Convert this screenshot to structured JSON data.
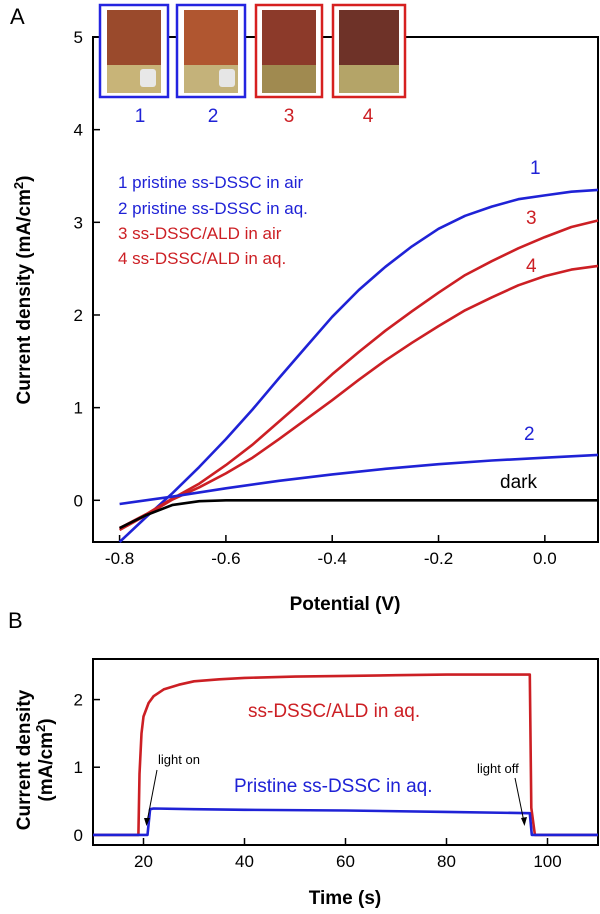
{
  "colors": {
    "blue": "#1f22d6",
    "red": "#cc1f24",
    "black": "#000000",
    "photo_border_blue": "#2424e0",
    "photo_border_red": "#d62020"
  },
  "panel_a": {
    "letter": "A",
    "photos": [
      {
        "label": "1",
        "color": "blue"
      },
      {
        "label": "2",
        "color": "blue"
      },
      {
        "label": "3",
        "color": "red"
      },
      {
        "label": "4",
        "color": "red"
      }
    ],
    "legend": [
      {
        "text": "1 pristine ss-DSSC in air",
        "color": "blue"
      },
      {
        "text": "2 pristine ss-DSSC in aq.",
        "color": "blue"
      },
      {
        "text": "3 ss-DSSC/ALD in air",
        "color": "red"
      },
      {
        "text": "4 ss-DSSC/ALD in aq.",
        "color": "red"
      }
    ],
    "curve_labels": [
      {
        "text": "1",
        "color": "blue"
      },
      {
        "text": "3",
        "color": "red"
      },
      {
        "text": "4",
        "color": "red"
      },
      {
        "text": "2",
        "color": "blue"
      },
      {
        "text": "dark",
        "color": "black"
      }
    ],
    "ylabel_main": "Current density (mA/cm",
    "ylabel_sup": "2",
    "ylabel_end": ")",
    "xlabel": "Potential (V)"
  },
  "panel_b": {
    "letter": "B",
    "ylabel_line1": "Current density",
    "ylabel_line2_main": "(mA/cm",
    "ylabel_line2_sup": "2",
    "ylabel_line2_end": ")",
    "xlabel": "Time (s)",
    "series_labels": [
      {
        "text": "ss-DSSC/ALD in aq.",
        "color": "red"
      },
      {
        "text": "Pristine ss-DSSC in aq.",
        "color": "blue"
      }
    ],
    "annotations": {
      "light_on": "light on",
      "light_off": "light off"
    }
  },
  "chart_data": [
    {
      "type": "line",
      "xlabel": "Potential (V)",
      "ylabel": "Current density (mA/cm2)",
      "xlim": [
        -0.85,
        0.1
      ],
      "ylim": [
        -0.45,
        5
      ],
      "xticks": [
        -0.8,
        -0.6,
        -0.4,
        -0.2,
        0.0
      ],
      "xtick_labels": [
        "-0.8",
        "-0.6",
        "-0.4",
        "-0.2",
        "0.0"
      ],
      "yticks": [
        0,
        1,
        2,
        3,
        4,
        5
      ],
      "ytick_labels": [
        "0",
        "1",
        "2",
        "3",
        "4",
        "5"
      ],
      "series": [
        {
          "name": "1 pristine ss-DSSC in air",
          "color": "blue",
          "x": [
            -0.8,
            -0.75,
            -0.7,
            -0.65,
            -0.6,
            -0.55,
            -0.5,
            -0.45,
            -0.4,
            -0.35,
            -0.3,
            -0.25,
            -0.2,
            -0.15,
            -0.1,
            -0.05,
            0.0,
            0.05,
            0.1
          ],
          "y": [
            -0.45,
            -0.18,
            0.08,
            0.36,
            0.66,
            0.98,
            1.32,
            1.65,
            1.98,
            2.27,
            2.52,
            2.74,
            2.93,
            3.07,
            3.17,
            3.25,
            3.29,
            3.33,
            3.35
          ]
        },
        {
          "name": "3 ss-DSSC/ALD in air",
          "color": "red",
          "x": [
            -0.8,
            -0.75,
            -0.7,
            -0.65,
            -0.6,
            -0.55,
            -0.5,
            -0.45,
            -0.4,
            -0.35,
            -0.3,
            -0.25,
            -0.2,
            -0.15,
            -0.1,
            -0.05,
            0.0,
            0.05,
            0.1
          ],
          "y": [
            -0.3,
            -0.15,
            0.02,
            0.18,
            0.38,
            0.6,
            0.85,
            1.1,
            1.36,
            1.6,
            1.83,
            2.04,
            2.24,
            2.43,
            2.58,
            2.72,
            2.84,
            2.95,
            3.02
          ]
        },
        {
          "name": "4 ss-DSSC/ALD in aq.",
          "color": "red",
          "x": [
            -0.8,
            -0.75,
            -0.7,
            -0.65,
            -0.6,
            -0.55,
            -0.5,
            -0.45,
            -0.4,
            -0.35,
            -0.3,
            -0.25,
            -0.2,
            -0.15,
            -0.1,
            -0.05,
            0.0,
            0.05,
            0.1
          ],
          "y": [
            -0.32,
            -0.16,
            0.01,
            0.14,
            0.29,
            0.46,
            0.66,
            0.87,
            1.08,
            1.3,
            1.51,
            1.7,
            1.88,
            2.05,
            2.19,
            2.32,
            2.42,
            2.49,
            2.53
          ]
        },
        {
          "name": "2 pristine ss-DSSC in aq.",
          "color": "blue",
          "x": [
            -0.8,
            -0.7,
            -0.6,
            -0.5,
            -0.4,
            -0.3,
            -0.2,
            -0.1,
            0.0,
            0.1
          ],
          "y": [
            -0.04,
            0.04,
            0.13,
            0.21,
            0.28,
            0.34,
            0.39,
            0.43,
            0.46,
            0.49
          ]
        },
        {
          "name": "dark",
          "color": "black",
          "x": [
            -0.8,
            -0.75,
            -0.7,
            -0.65,
            -0.6,
            -0.5,
            -0.4,
            -0.2,
            0.0,
            0.1
          ],
          "y": [
            -0.3,
            -0.16,
            -0.05,
            -0.01,
            0.0,
            0.0,
            0.0,
            0.0,
            0.0,
            0.0
          ]
        }
      ]
    },
    {
      "type": "line",
      "xlabel": "Time (s)",
      "ylabel": "Current density (mA/cm2)",
      "xlim": [
        10,
        110
      ],
      "ylim": [
        -0.15,
        2.6
      ],
      "xticks": [
        20,
        40,
        60,
        80,
        100
      ],
      "xtick_labels": [
        "20",
        "40",
        "60",
        "80",
        "100"
      ],
      "yticks": [
        0,
        1,
        2
      ],
      "ytick_labels": [
        "0",
        "1",
        "2"
      ],
      "series": [
        {
          "name": "ss-DSSC/ALD in aq.",
          "color": "red",
          "x": [
            10,
            19,
            19.2,
            19.6,
            20,
            21,
            22,
            24,
            27,
            30,
            35,
            40,
            50,
            60,
            70,
            80,
            90,
            96.5,
            96.8,
            97.5,
            110
          ],
          "y": [
            0,
            0,
            0.9,
            1.5,
            1.75,
            1.95,
            2.05,
            2.15,
            2.22,
            2.27,
            2.3,
            2.32,
            2.34,
            2.35,
            2.36,
            2.37,
            2.37,
            2.37,
            0.4,
            0,
            0
          ]
        },
        {
          "name": "Pristine ss-DSSC in aq.",
          "color": "blue",
          "x": [
            10,
            20.8,
            21.3,
            22,
            30,
            40,
            60,
            80,
            96.5,
            96.9,
            110
          ],
          "y": [
            0,
            0,
            0.38,
            0.39,
            0.38,
            0.37,
            0.36,
            0.34,
            0.32,
            0,
            0
          ]
        }
      ]
    }
  ]
}
